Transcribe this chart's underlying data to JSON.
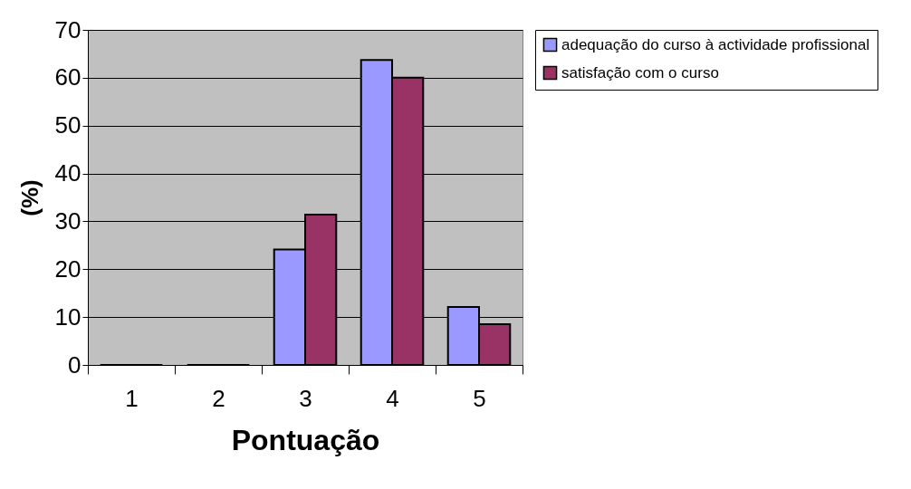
{
  "chart_data": {
    "type": "bar",
    "xlabel": "Pontuação",
    "ylabel": "(%)",
    "categories": [
      "1",
      "2",
      "3",
      "4",
      "5"
    ],
    "series": [
      {
        "name": "adequação do curso à actividade profissional",
        "color": "#9999ff",
        "values": [
          0,
          0,
          24.1,
          63.7,
          12.1
        ]
      },
      {
        "name": "satisfação com o curso",
        "color": "#993366",
        "values": [
          0,
          0,
          31.4,
          60,
          8.5
        ]
      }
    ],
    "ylim": [
      0,
      70
    ],
    "yticks": [
      0,
      10,
      20,
      30,
      40,
      50,
      60,
      70
    ],
    "grid": "y",
    "legend": "right"
  }
}
